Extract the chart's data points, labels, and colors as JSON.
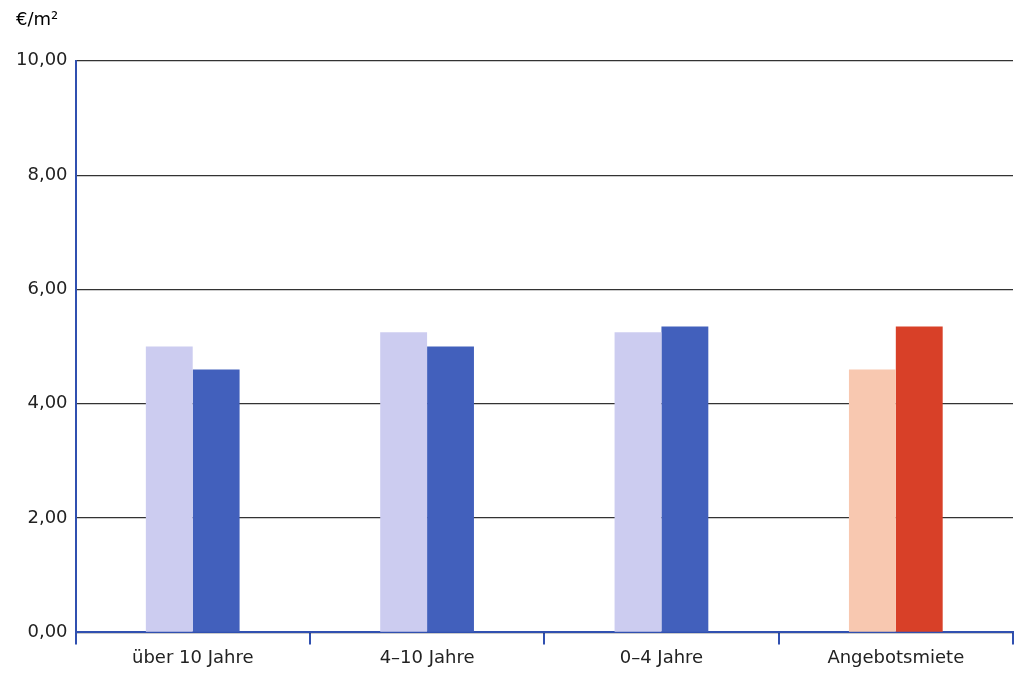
{
  "chart_data": {
    "type": "bar",
    "ylabel": "€/m²",
    "categories": [
      "über 10 Jahre",
      "4–10 Jahre",
      "0–4 Jahre",
      "Angebotsmiete"
    ],
    "series": [
      {
        "colors": [
          "#ccccf0",
          "#ccccf0",
          "#ccccf0",
          "#f8c8b0"
        ],
        "values": [
          5.0,
          5.25,
          5.25,
          4.6
        ]
      },
      {
        "colors": [
          "#4260bc",
          "#4260bc",
          "#4260bc",
          "#d84028"
        ],
        "values": [
          4.6,
          5.0,
          5.35,
          5.35
        ]
      }
    ],
    "ylim": [
      0,
      10
    ],
    "yticks": [
      {
        "value": 0,
        "label": "0,00"
      },
      {
        "value": 2,
        "label": "2,00"
      },
      {
        "value": 4,
        "label": "4,00"
      },
      {
        "value": 6,
        "label": "6,00"
      },
      {
        "value": 8,
        "label": "8,00"
      },
      {
        "value": 10,
        "label": "10,00"
      }
    ],
    "grid": "y",
    "legend": false
  }
}
